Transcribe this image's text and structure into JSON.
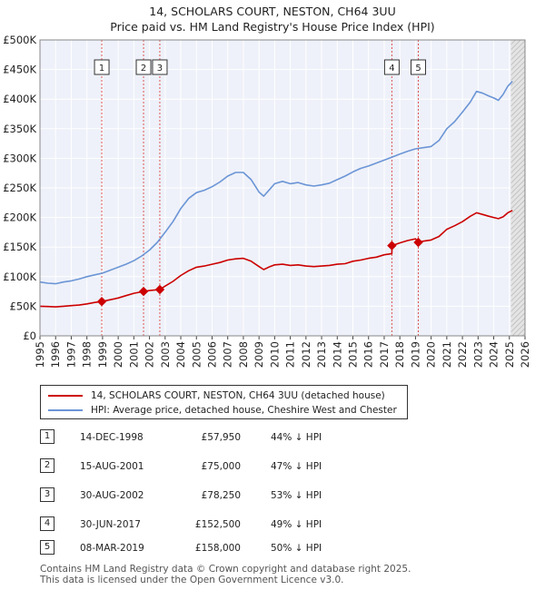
{
  "chart_data": {
    "type": "line",
    "title": "14, SCHOLARS COURT, NESTON, CH64 3UU",
    "subtitle": "Price paid vs. HM Land Registry's House Price Index (HPI)",
    "xlim": [
      1995,
      2026
    ],
    "ylim": [
      0,
      500000
    ],
    "x_ticks": [
      1995,
      1996,
      1997,
      1998,
      1999,
      2000,
      2001,
      2002,
      2003,
      2004,
      2005,
      2006,
      2007,
      2008,
      2009,
      2010,
      2011,
      2012,
      2013,
      2014,
      2015,
      2016,
      2017,
      2018,
      2019,
      2020,
      2021,
      2022,
      2023,
      2024,
      2025,
      2026
    ],
    "y_ticks": [
      {
        "value": 0,
        "label": "£0"
      },
      {
        "value": 50000,
        "label": "£50K"
      },
      {
        "value": 100000,
        "label": "£100K"
      },
      {
        "value": 150000,
        "label": "£150K"
      },
      {
        "value": 200000,
        "label": "£200K"
      },
      {
        "value": 250000,
        "label": "£250K"
      },
      {
        "value": 300000,
        "label": "£300K"
      },
      {
        "value": 350000,
        "label": "£350K"
      },
      {
        "value": 400000,
        "label": "£400K"
      },
      {
        "value": 450000,
        "label": "£450K"
      },
      {
        "value": 500000,
        "label": "£500K"
      }
    ],
    "forecast_start": 2025.1,
    "series": [
      {
        "name": "14, SCHOLARS COURT, NESTON, CH64 3UU (detached house)",
        "color": "#cc0000",
        "points": [
          [
            1995.0,
            50000
          ],
          [
            1995.5,
            49500
          ],
          [
            1996.0,
            49000
          ],
          [
            1996.5,
            50000
          ],
          [
            1997.0,
            51000
          ],
          [
            1997.5,
            52000
          ],
          [
            1998.0,
            54000
          ],
          [
            1998.5,
            56500
          ],
          [
            1998.95,
            57950
          ],
          [
            1999.5,
            61000
          ],
          [
            2000.0,
            64000
          ],
          [
            2000.5,
            68000
          ],
          [
            2001.0,
            72000
          ],
          [
            2001.62,
            75000
          ],
          [
            2002.0,
            76500
          ],
          [
            2002.66,
            78250
          ],
          [
            2003.0,
            84000
          ],
          [
            2003.5,
            92000
          ],
          [
            2004.0,
            102000
          ],
          [
            2004.5,
            110000
          ],
          [
            2005.0,
            116000
          ],
          [
            2005.5,
            118000
          ],
          [
            2006.0,
            121000
          ],
          [
            2006.5,
            124000
          ],
          [
            2007.0,
            128000
          ],
          [
            2007.5,
            130000
          ],
          [
            2008.0,
            131000
          ],
          [
            2008.5,
            126000
          ],
          [
            2009.0,
            117000
          ],
          [
            2009.3,
            112000
          ],
          [
            2009.7,
            117000
          ],
          [
            2010.0,
            120000
          ],
          [
            2010.5,
            121000
          ],
          [
            2011.0,
            119000
          ],
          [
            2011.5,
            120000
          ],
          [
            2012.0,
            118000
          ],
          [
            2012.5,
            117000
          ],
          [
            2013.0,
            118000
          ],
          [
            2013.5,
            119000
          ],
          [
            2014.0,
            121000
          ],
          [
            2014.5,
            122000
          ],
          [
            2015.0,
            126000
          ],
          [
            2015.5,
            128000
          ],
          [
            2016.0,
            131000
          ],
          [
            2016.5,
            133000
          ],
          [
            2017.0,
            137000
          ],
          [
            2017.49,
            139000
          ],
          [
            2017.5,
            152500
          ],
          [
            2018.0,
            157000
          ],
          [
            2018.5,
            161000
          ],
          [
            2019.0,
            164000
          ],
          [
            2019.18,
            158000
          ],
          [
            2019.5,
            160000
          ],
          [
            2020.0,
            162000
          ],
          [
            2020.5,
            168000
          ],
          [
            2021.0,
            180000
          ],
          [
            2021.5,
            186000
          ],
          [
            2022.0,
            193000
          ],
          [
            2022.5,
            202000
          ],
          [
            2022.9,
            208000
          ],
          [
            2023.3,
            205000
          ],
          [
            2023.7,
            202000
          ],
          [
            2024.0,
            200000
          ],
          [
            2024.3,
            198000
          ],
          [
            2024.6,
            201000
          ],
          [
            2024.9,
            208000
          ],
          [
            2025.2,
            212000
          ]
        ]
      },
      {
        "name": "HPI: Average price, detached house, Cheshire West and Chester",
        "color": "#6b95d6",
        "points": [
          [
            1995.0,
            91000
          ],
          [
            1995.5,
            89000
          ],
          [
            1996.0,
            88000
          ],
          [
            1996.5,
            91000
          ],
          [
            1997.0,
            93000
          ],
          [
            1997.5,
            96000
          ],
          [
            1998.0,
            100000
          ],
          [
            1998.5,
            103000
          ],
          [
            1999.0,
            106000
          ],
          [
            1999.5,
            111000
          ],
          [
            2000.0,
            116000
          ],
          [
            2000.5,
            121000
          ],
          [
            2001.0,
            127000
          ],
          [
            2001.5,
            135000
          ],
          [
            2002.0,
            145000
          ],
          [
            2002.5,
            158000
          ],
          [
            2003.0,
            175000
          ],
          [
            2003.5,
            193000
          ],
          [
            2004.0,
            215000
          ],
          [
            2004.5,
            232000
          ],
          [
            2005.0,
            242000
          ],
          [
            2005.5,
            246000
          ],
          [
            2006.0,
            252000
          ],
          [
            2006.5,
            260000
          ],
          [
            2007.0,
            270000
          ],
          [
            2007.5,
            276000
          ],
          [
            2008.0,
            276000
          ],
          [
            2008.5,
            264000
          ],
          [
            2009.0,
            243000
          ],
          [
            2009.3,
            236000
          ],
          [
            2009.7,
            248000
          ],
          [
            2010.0,
            257000
          ],
          [
            2010.5,
            261000
          ],
          [
            2011.0,
            257000
          ],
          [
            2011.5,
            259000
          ],
          [
            2012.0,
            255000
          ],
          [
            2012.5,
            253000
          ],
          [
            2013.0,
            255000
          ],
          [
            2013.5,
            258000
          ],
          [
            2014.0,
            264000
          ],
          [
            2014.5,
            270000
          ],
          [
            2015.0,
            277000
          ],
          [
            2015.5,
            283000
          ],
          [
            2016.0,
            287000
          ],
          [
            2016.5,
            292000
          ],
          [
            2017.0,
            297000
          ],
          [
            2017.5,
            302000
          ],
          [
            2018.0,
            307000
          ],
          [
            2018.5,
            312000
          ],
          [
            2019.0,
            316000
          ],
          [
            2019.5,
            318000
          ],
          [
            2020.0,
            320000
          ],
          [
            2020.5,
            330000
          ],
          [
            2021.0,
            350000
          ],
          [
            2021.5,
            362000
          ],
          [
            2022.0,
            378000
          ],
          [
            2022.5,
            395000
          ],
          [
            2022.9,
            413000
          ],
          [
            2023.3,
            410000
          ],
          [
            2023.7,
            405000
          ],
          [
            2024.0,
            402000
          ],
          [
            2024.3,
            398000
          ],
          [
            2024.6,
            408000
          ],
          [
            2024.9,
            422000
          ],
          [
            2025.2,
            430000
          ]
        ]
      }
    ],
    "sales": [
      {
        "label": "1",
        "year": 1998.95,
        "price": 57950
      },
      {
        "label": "2",
        "year": 2001.62,
        "price": 75000
      },
      {
        "label": "3",
        "year": 2002.66,
        "price": 78250
      },
      {
        "label": "4",
        "year": 2017.49,
        "price": 152500
      },
      {
        "label": "5",
        "year": 2019.18,
        "price": 158000
      }
    ]
  },
  "legend": {
    "property_label": "14, SCHOLARS COURT, NESTON, CH64 3UU (detached house)",
    "hpi_label": "HPI: Average price, detached house, Cheshire West and Chester",
    "property_color": "#cc0000",
    "hpi_color": "#6b95d6"
  },
  "sales_table": [
    {
      "num": "1",
      "date": "14-DEC-1998",
      "price": "£57,950",
      "hpi": "44% ↓ HPI"
    },
    {
      "num": "2",
      "date": "15-AUG-2001",
      "price": "£75,000",
      "hpi": "47% ↓ HPI"
    },
    {
      "num": "3",
      "date": "30-AUG-2002",
      "price": "£78,250",
      "hpi": "53% ↓ HPI"
    },
    {
      "num": "4",
      "date": "30-JUN-2017",
      "price": "£152,500",
      "hpi": "49% ↓ HPI"
    },
    {
      "num": "5",
      "date": "08-MAR-2019",
      "price": "£158,000",
      "hpi": "50% ↓ HPI"
    }
  ],
  "footer": {
    "line1": "Contains HM Land Registry data © Crown copyright and database right 2025.",
    "line2": "This data is licensed under the Open Government Licence v3.0."
  }
}
